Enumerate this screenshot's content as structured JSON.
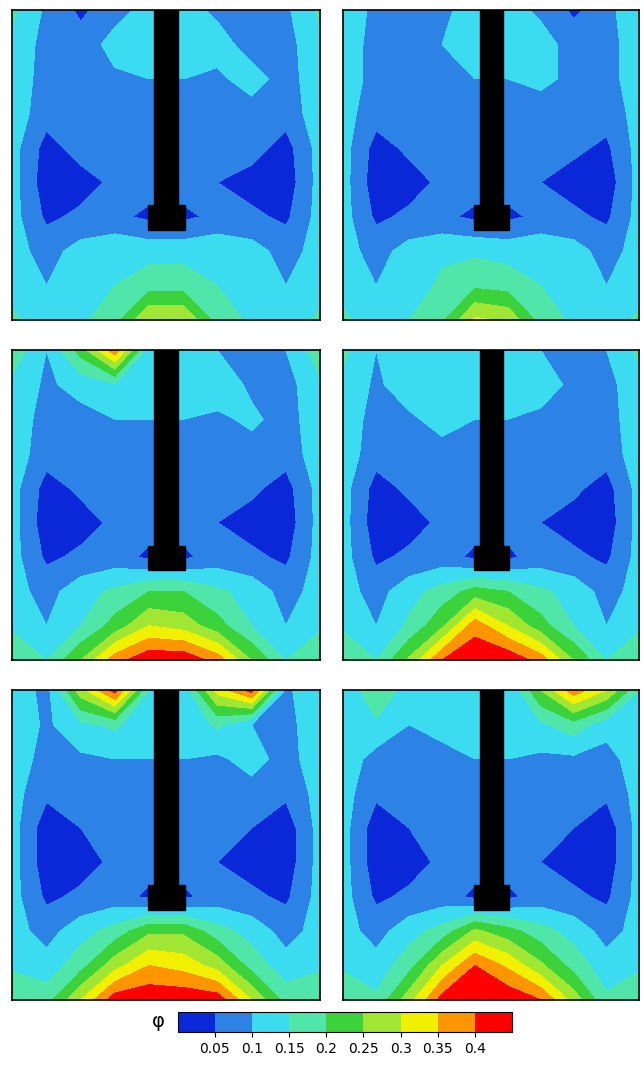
{
  "chart_data": {
    "type": "contour",
    "panels": [
      {
        "cells": [
          [
            0.16,
            0.09,
            0.04,
            0.08,
            0.12,
            0.12,
            0.09,
            0.07,
            0.09,
            0.16
          ],
          [
            0.14,
            0.08,
            0.07,
            0.12,
            0.11,
            0.11,
            0.12,
            0.08,
            0.08,
            0.14
          ],
          [
            0.13,
            0.08,
            0.08,
            0.09,
            0.1,
            0.1,
            0.09,
            0.12,
            0.08,
            0.13
          ],
          [
            0.13,
            0.07,
            0.08,
            0.08,
            0.09,
            0.09,
            0.08,
            0.08,
            0.07,
            0.13
          ],
          [
            0.12,
            0.03,
            0.07,
            0.08,
            0.09,
            0.09,
            0.08,
            0.07,
            0.03,
            0.12
          ],
          [
            0.12,
            0.02,
            0.03,
            0.06,
            0.07,
            0.07,
            0.05,
            0.03,
            0.02,
            0.12
          ],
          [
            0.12,
            0.04,
            0.06,
            0.06,
            0.04,
            0.04,
            0.06,
            0.06,
            0.04,
            0.12
          ],
          [
            0.12,
            0.08,
            0.12,
            0.14,
            0.13,
            0.13,
            0.14,
            0.12,
            0.08,
            0.12
          ],
          [
            0.13,
            0.1,
            0.12,
            0.15,
            0.18,
            0.18,
            0.15,
            0.12,
            0.1,
            0.13
          ],
          [
            0.16,
            0.12,
            0.14,
            0.18,
            0.3,
            0.3,
            0.18,
            0.14,
            0.12,
            0.16
          ]
        ]
      },
      {
        "cells": [
          [
            0.15,
            0.08,
            0.08,
            0.09,
            0.12,
            0.12,
            0.09,
            0.04,
            0.08,
            0.15
          ],
          [
            0.13,
            0.08,
            0.09,
            0.1,
            0.11,
            0.11,
            0.12,
            0.08,
            0.08,
            0.13
          ],
          [
            0.13,
            0.08,
            0.08,
            0.09,
            0.1,
            0.1,
            0.11,
            0.09,
            0.08,
            0.13
          ],
          [
            0.12,
            0.07,
            0.08,
            0.08,
            0.09,
            0.09,
            0.08,
            0.08,
            0.07,
            0.12
          ],
          [
            0.12,
            0.03,
            0.06,
            0.08,
            0.09,
            0.09,
            0.08,
            0.06,
            0.04,
            0.12
          ],
          [
            0.12,
            0.02,
            0.03,
            0.06,
            0.07,
            0.07,
            0.05,
            0.03,
            0.02,
            0.12
          ],
          [
            0.12,
            0.04,
            0.06,
            0.06,
            0.04,
            0.04,
            0.06,
            0.06,
            0.04,
            0.12
          ],
          [
            0.12,
            0.08,
            0.12,
            0.14,
            0.14,
            0.13,
            0.14,
            0.12,
            0.08,
            0.12
          ],
          [
            0.13,
            0.1,
            0.12,
            0.16,
            0.19,
            0.18,
            0.15,
            0.12,
            0.1,
            0.13
          ],
          [
            0.16,
            0.12,
            0.15,
            0.19,
            0.31,
            0.29,
            0.18,
            0.14,
            0.12,
            0.16
          ]
        ]
      },
      {
        "cells": [
          [
            0.18,
            0.1,
            0.22,
            0.38,
            0.12,
            0.12,
            0.1,
            0.08,
            0.1,
            0.18
          ],
          [
            0.14,
            0.09,
            0.12,
            0.14,
            0.11,
            0.11,
            0.13,
            0.09,
            0.08,
            0.14
          ],
          [
            0.13,
            0.08,
            0.08,
            0.1,
            0.1,
            0.1,
            0.09,
            0.11,
            0.08,
            0.13
          ],
          [
            0.13,
            0.07,
            0.08,
            0.08,
            0.09,
            0.09,
            0.08,
            0.08,
            0.07,
            0.13
          ],
          [
            0.12,
            0.03,
            0.06,
            0.08,
            0.09,
            0.09,
            0.08,
            0.06,
            0.03,
            0.12
          ],
          [
            0.12,
            0.02,
            0.03,
            0.06,
            0.07,
            0.07,
            0.05,
            0.03,
            0.02,
            0.12
          ],
          [
            0.12,
            0.04,
            0.06,
            0.07,
            0.04,
            0.04,
            0.07,
            0.06,
            0.04,
            0.12
          ],
          [
            0.12,
            0.08,
            0.13,
            0.16,
            0.2,
            0.2,
            0.16,
            0.13,
            0.08,
            0.12
          ],
          [
            0.14,
            0.1,
            0.15,
            0.22,
            0.3,
            0.28,
            0.22,
            0.15,
            0.1,
            0.14
          ],
          [
            0.2,
            0.15,
            0.25,
            0.38,
            0.44,
            0.44,
            0.38,
            0.25,
            0.15,
            0.2
          ]
        ]
      },
      {
        "cells": [
          [
            0.16,
            0.1,
            0.12,
            0.14,
            0.12,
            0.12,
            0.1,
            0.08,
            0.1,
            0.16
          ],
          [
            0.14,
            0.09,
            0.13,
            0.12,
            0.11,
            0.11,
            0.12,
            0.09,
            0.08,
            0.14
          ],
          [
            0.13,
            0.08,
            0.09,
            0.12,
            0.1,
            0.1,
            0.09,
            0.1,
            0.08,
            0.13
          ],
          [
            0.13,
            0.07,
            0.08,
            0.08,
            0.09,
            0.09,
            0.08,
            0.08,
            0.07,
            0.13
          ],
          [
            0.12,
            0.03,
            0.06,
            0.08,
            0.09,
            0.09,
            0.08,
            0.06,
            0.03,
            0.12
          ],
          [
            0.12,
            0.02,
            0.03,
            0.06,
            0.07,
            0.07,
            0.05,
            0.03,
            0.02,
            0.12
          ],
          [
            0.12,
            0.04,
            0.06,
            0.07,
            0.04,
            0.04,
            0.07,
            0.06,
            0.04,
            0.12
          ],
          [
            0.12,
            0.08,
            0.13,
            0.17,
            0.22,
            0.2,
            0.16,
            0.13,
            0.08,
            0.12
          ],
          [
            0.14,
            0.1,
            0.16,
            0.24,
            0.38,
            0.3,
            0.22,
            0.15,
            0.1,
            0.14
          ],
          [
            0.2,
            0.15,
            0.26,
            0.4,
            0.44,
            0.44,
            0.38,
            0.25,
            0.15,
            0.2
          ]
        ]
      },
      {
        "cells": [
          [
            0.14,
            0.08,
            0.28,
            0.42,
            0.15,
            0.12,
            0.32,
            0.42,
            0.09,
            0.14
          ],
          [
            0.14,
            0.09,
            0.14,
            0.16,
            0.11,
            0.11,
            0.16,
            0.1,
            0.08,
            0.14
          ],
          [
            0.13,
            0.08,
            0.09,
            0.1,
            0.1,
            0.1,
            0.09,
            0.12,
            0.08,
            0.13
          ],
          [
            0.12,
            0.06,
            0.08,
            0.08,
            0.09,
            0.09,
            0.08,
            0.08,
            0.06,
            0.12
          ],
          [
            0.12,
            0.02,
            0.05,
            0.08,
            0.09,
            0.09,
            0.08,
            0.05,
            0.02,
            0.12
          ],
          [
            0.12,
            0.02,
            0.03,
            0.06,
            0.07,
            0.07,
            0.05,
            0.03,
            0.02,
            0.12
          ],
          [
            0.12,
            0.04,
            0.06,
            0.07,
            0.04,
            0.04,
            0.07,
            0.06,
            0.04,
            0.12
          ],
          [
            0.12,
            0.08,
            0.13,
            0.17,
            0.24,
            0.24,
            0.17,
            0.13,
            0.08,
            0.12
          ],
          [
            0.14,
            0.12,
            0.18,
            0.28,
            0.35,
            0.33,
            0.28,
            0.18,
            0.12,
            0.14
          ],
          [
            0.2,
            0.18,
            0.3,
            0.43,
            0.44,
            0.44,
            0.43,
            0.3,
            0.18,
            0.2
          ]
        ]
      },
      {
        "cells": [
          [
            0.1,
            0.2,
            0.12,
            0.1,
            0.12,
            0.1,
            0.25,
            0.38,
            0.3,
            0.15
          ],
          [
            0.12,
            0.14,
            0.1,
            0.11,
            0.11,
            0.11,
            0.14,
            0.18,
            0.12,
            0.14
          ],
          [
            0.13,
            0.08,
            0.08,
            0.09,
            0.1,
            0.1,
            0.09,
            0.09,
            0.08,
            0.13
          ],
          [
            0.12,
            0.06,
            0.08,
            0.08,
            0.09,
            0.09,
            0.08,
            0.08,
            0.06,
            0.12
          ],
          [
            0.12,
            0.02,
            0.05,
            0.08,
            0.09,
            0.09,
            0.08,
            0.05,
            0.02,
            0.12
          ],
          [
            0.12,
            0.02,
            0.03,
            0.06,
            0.07,
            0.07,
            0.05,
            0.03,
            0.02,
            0.12
          ],
          [
            0.12,
            0.04,
            0.06,
            0.07,
            0.04,
            0.04,
            0.07,
            0.06,
            0.04,
            0.12
          ],
          [
            0.12,
            0.08,
            0.13,
            0.17,
            0.26,
            0.22,
            0.17,
            0.13,
            0.08,
            0.12
          ],
          [
            0.14,
            0.12,
            0.18,
            0.3,
            0.4,
            0.34,
            0.26,
            0.18,
            0.12,
            0.14
          ],
          [
            0.2,
            0.16,
            0.28,
            0.42,
            0.44,
            0.44,
            0.4,
            0.28,
            0.16,
            0.2
          ]
        ]
      }
    ],
    "colorbar": {
      "label": "φ",
      "range": [
        0,
        0.45
      ],
      "ticks": [
        0.05,
        0.1,
        0.15,
        0.2,
        0.25,
        0.3,
        0.35,
        0.4
      ],
      "colors": [
        "#0a28d8",
        "#2d82e6",
        "#3cdcf0",
        "#50e6aa",
        "#3cd23c",
        "#a0e632",
        "#f0f000",
        "#ff9600",
        "#ff0000"
      ]
    }
  }
}
